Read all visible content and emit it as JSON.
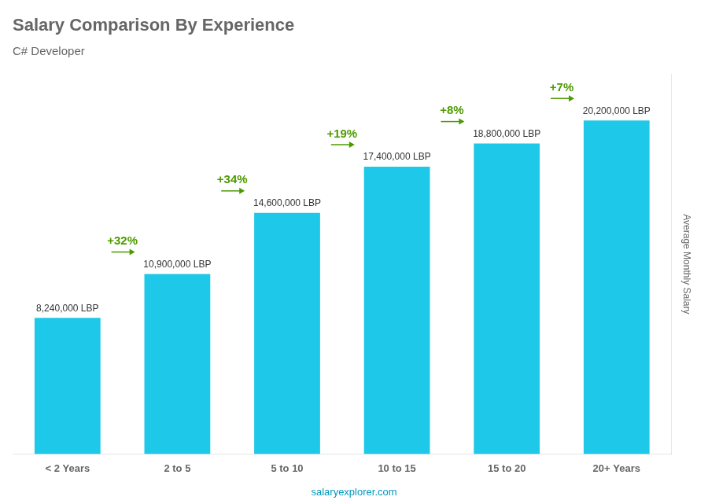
{
  "chart_data": {
    "type": "bar",
    "title": "Salary Comparison By Experience",
    "subtitle": "C# Developer",
    "categories": [
      "< 2 Years",
      "2 to 5",
      "5 to 10",
      "10 to 15",
      "15 to 20",
      "20+ Years"
    ],
    "values": [
      8240000,
      10900000,
      14600000,
      17400000,
      18800000,
      20200000
    ],
    "value_labels": [
      "8,240,000 LBP",
      "10,900,000 LBP",
      "14,600,000 LBP",
      "17,400,000 LBP",
      "18,800,000 LBP",
      "20,200,000 LBP"
    ],
    "data_labels": true,
    "color": "#1ec8e8",
    "y_label": "Average Monthly Salary",
    "ylim": [
      0,
      23000000
    ],
    "grid": false,
    "tick_labels": "x",
    "annotations": [
      "+32%",
      "+34%",
      "+19%",
      "+8%",
      "+7%"
    ],
    "watermark": "salaryexplorer.com"
  }
}
